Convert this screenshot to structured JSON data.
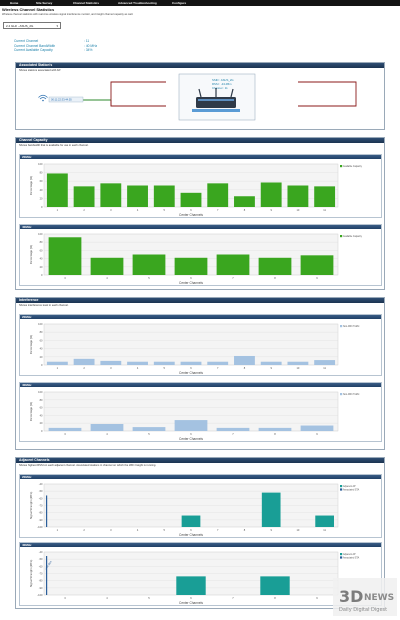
{
  "nav": [
    "Home",
    "Site Survey",
    "Channel Statistics",
    "Advanced Troubleshooting",
    "Configure"
  ],
  "page": {
    "title": "Wireless Channel Statistics",
    "subtitle": "Wireless channel statistics with real-time wireless signal interference monitor, and insight channel capacity as well."
  },
  "band_select": {
    "value": "2.4 GHz - ASUS_2G",
    "icon": "chevron-down-icon"
  },
  "stats": [
    {
      "label": "Current Channel",
      "value": ": 11"
    },
    {
      "label": "Current Channel BandWidth",
      "value": ": 40 MHz"
    },
    {
      "label": "Current Available Capacity",
      "value": ": 34%"
    }
  ],
  "associated": {
    "header": "Associated Station's",
    "desc": "Shows stations associated with AP.",
    "station_label": "00:11:22:33:44:55",
    "ap_info": {
      "ssid": "SSID : ASUS_2G",
      "rssi": "RSSI : -34 dBm",
      "channel": "Channel : 11"
    },
    "colors": {
      "line_green": "#2d8a2d",
      "line_red": "#8b1a1a"
    }
  },
  "capacity": {
    "header": "Channel Capacity",
    "desc": "Shows bandwidth that is available for use in each channel.",
    "panels": [
      "20MHz",
      "40MHz"
    ]
  },
  "interference": {
    "header": "Interference",
    "desc": "Shows interference level in each channel.",
    "panels": [
      "20MHz",
      "40MHz"
    ]
  },
  "adjacent": {
    "header": "Adjacent Channels",
    "desc": "Shows highest RSSI on each adjacent channel. Associated stations in channel on which the WiFi Insight is running.",
    "panels": [
      "20MHz",
      "40MHz"
    ],
    "annotation": "-100 dBm"
  },
  "chart_data": [
    {
      "type": "bar",
      "title": "20MHz",
      "categories": [
        "1",
        "2",
        "3",
        "4",
        "5",
        "6",
        "7",
        "8",
        "9",
        "10",
        "11"
      ],
      "series": [
        {
          "name": "Available Capacity",
          "values": [
            78,
            48,
            55,
            50,
            50,
            33,
            55,
            25,
            57,
            50,
            48
          ],
          "color": "#3aa61f"
        }
      ],
      "xlabel": "Center Channels",
      "ylabel": "Percentage (%)",
      "ylim": [
        0,
        100
      ],
      "yticks": [
        "100",
        "80",
        "60",
        "40",
        "20",
        "0"
      ],
      "grid": true,
      "legend": "top-right"
    },
    {
      "type": "bar",
      "title": "40MHz",
      "categories": [
        "3",
        "4",
        "5",
        "6",
        "7",
        "8",
        "9"
      ],
      "series": [
        {
          "name": "Available Capacity",
          "values": [
            92,
            42,
            50,
            42,
            50,
            42,
            48
          ],
          "color": "#3aa61f"
        }
      ],
      "xlabel": "Center Channels",
      "ylabel": "Percentage (%)",
      "ylim": [
        0,
        100
      ],
      "yticks": [
        "100",
        "80",
        "60",
        "40",
        "20",
        "0"
      ],
      "grid": true,
      "legend": "top-right"
    },
    {
      "type": "bar",
      "title": "20MHz",
      "categories": [
        "1",
        "2",
        "3",
        "4",
        "5",
        "6",
        "7",
        "8",
        "9",
        "10",
        "11"
      ],
      "series": [
        {
          "name": "Non-WiFi Traffic",
          "values": [
            8,
            15,
            10,
            8,
            8,
            8,
            8,
            22,
            8,
            8,
            12
          ],
          "color": "#a4c2e1"
        }
      ],
      "xlabel": "Center Channels",
      "ylabel": "Percentage (%)",
      "ylim": [
        0,
        100
      ],
      "yticks": [
        "100",
        "80",
        "60",
        "40",
        "20",
        "0"
      ],
      "grid": true,
      "legend": "top-right"
    },
    {
      "type": "bar",
      "title": "40MHz",
      "categories": [
        "3",
        "4",
        "5",
        "6",
        "7",
        "8",
        "9"
      ],
      "series": [
        {
          "name": "Non-WiFi Traffic",
          "values": [
            8,
            18,
            10,
            28,
            8,
            8,
            14
          ],
          "color": "#a4c2e1"
        }
      ],
      "xlabel": "Center Channels",
      "ylabel": "Percentage (%)",
      "ylim": [
        0,
        100
      ],
      "yticks": [
        "100",
        "80",
        "60",
        "40",
        "20",
        "0"
      ],
      "grid": true,
      "legend": "top-right"
    },
    {
      "type": "bar",
      "title": "20MHz",
      "categories": [
        "1",
        "2",
        "3",
        "4",
        "5",
        "6",
        "7",
        "8",
        "9",
        "10",
        "11"
      ],
      "series": [
        {
          "name": "Adjacent AP",
          "values": [
            -100,
            -100,
            -100,
            -100,
            -100,
            -84,
            -100,
            -100,
            -52,
            -100,
            -84
          ],
          "color": "#199e96"
        },
        {
          "name": "Associated STA",
          "values": [
            -56,
            -100,
            -100,
            -100,
            -100,
            -100,
            -100,
            -100,
            -100,
            -100,
            -100
          ],
          "color": "#2b5e9a"
        }
      ],
      "xlabel": "Center Channels",
      "ylabel": "Signal Strength (dBm)",
      "ylim": [
        -100,
        -40
      ],
      "yticks": [
        "-40",
        "-50",
        "-60",
        "-70",
        "-80",
        "-90",
        "-100"
      ],
      "grid": true,
      "legend": "top-right"
    },
    {
      "type": "bar",
      "title": "40MHz",
      "categories": [
        "3",
        "4",
        "5",
        "6",
        "7",
        "8",
        "9"
      ],
      "series": [
        {
          "name": "Adjacent AP",
          "values": [
            -100,
            -100,
            -100,
            -74,
            -100,
            -74,
            -100
          ],
          "color": "#199e96"
        },
        {
          "name": "Associated STA",
          "values": [
            -100,
            -100,
            -100,
            -100,
            -100,
            -100,
            -100
          ],
          "color": "#2b5e9a"
        }
      ],
      "xlabel": "Center Channels",
      "ylabel": "Signal Strength (dBm)",
      "ylim": [
        -100,
        -40
      ],
      "yticks": [
        "-40",
        "-50",
        "-60",
        "-70",
        "-80",
        "-90",
        "-100"
      ],
      "grid": true,
      "legend": "top-right"
    }
  ]
}
